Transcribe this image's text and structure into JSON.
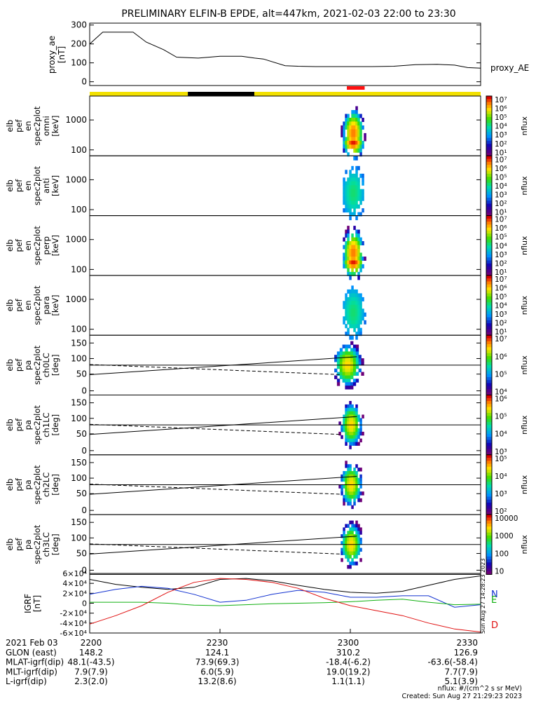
{
  "title": "PRELIMINARY ELFIN-B EPDE, alt=447km, 2021-02-03 22:00 to 23:30",
  "colors": {
    "sunlit": "#f2e000",
    "shadow": "#000000",
    "science_zone": "#ff1010",
    "bz": "#000000",
    "north": "#1030d0",
    "east": "#10b010",
    "down": "#e01010"
  },
  "chart_data": [
    {
      "type": "line",
      "id": "proxy_ae",
      "ylabel": [
        "proxy_ae",
        "[nT]"
      ],
      "ylim": [
        -20,
        310
      ],
      "yticks": [
        "300",
        "200",
        "100",
        "0"
      ],
      "legend": "proxy_AE",
      "x": [
        0,
        3,
        6,
        10,
        13,
        17,
        20,
        25,
        30,
        35,
        38,
        40,
        45,
        48,
        52,
        55,
        60,
        65,
        70,
        75,
        80,
        84,
        87,
        90
      ],
      "values": [
        200,
        262,
        262,
        262,
        210,
        170,
        130,
        125,
        135,
        135,
        125,
        120,
        85,
        82,
        80,
        80,
        80,
        80,
        82,
        90,
        92,
        88,
        75,
        72
      ]
    },
    {
      "type": "heatmap",
      "id": "omni",
      "ylabel": [
        "elb",
        "pef",
        "en",
        "spec2plot",
        "omni",
        "[keV]"
      ],
      "ytick_labels": [
        "1000",
        "100"
      ],
      "colorbar": {
        "label": "nflux",
        "ticks": [
          "10^7",
          "10^6",
          "10^5",
          "10^4",
          "10^3",
          "10^2",
          "10^1"
        ]
      }
    },
    {
      "type": "heatmap",
      "id": "anti",
      "ylabel": [
        "elb",
        "pef",
        "en",
        "spec2plot",
        "anti",
        "[keV]"
      ],
      "ytick_labels": [
        "1000",
        "100"
      ],
      "colorbar": {
        "label": "nflux",
        "ticks": [
          "10^7",
          "10^6",
          "10^5",
          "10^4",
          "10^3",
          "10^2",
          "10^1"
        ]
      }
    },
    {
      "type": "heatmap",
      "id": "perp",
      "ylabel": [
        "elb",
        "pef",
        "en",
        "spec2plot",
        "perp",
        "[keV]"
      ],
      "ytick_labels": [
        "1000",
        "100"
      ],
      "colorbar": {
        "label": "nflux",
        "ticks": [
          "10^7",
          "10^6",
          "10^5",
          "10^4",
          "10^3",
          "10^2",
          "10^1"
        ]
      }
    },
    {
      "type": "heatmap",
      "id": "para",
      "ylabel": [
        "elb",
        "pef",
        "en",
        "spec2plot",
        "para",
        "[keV]"
      ],
      "ytick_labels": [
        "1000",
        "100"
      ],
      "colorbar": {
        "label": "nflux",
        "ticks": [
          "10^7",
          "10^6",
          "10^5",
          "10^4",
          "10^3",
          "10^2",
          "10^1"
        ]
      }
    },
    {
      "type": "heatmap",
      "id": "ch0LC",
      "ylabel": [
        "elb",
        "pef",
        "pa",
        "spec2plot",
        "ch0LC",
        "[deg]"
      ],
      "ytick_labels": [
        "150",
        "100",
        "50",
        "0"
      ],
      "colorbar": {
        "label": "nflux",
        "ticks": [
          "10^7",
          "10^6",
          "10^5",
          "10^4"
        ]
      }
    },
    {
      "type": "heatmap",
      "id": "ch1LC",
      "ylabel": [
        "elb",
        "pef",
        "pa",
        "spec2plot",
        "ch1LC",
        "[deg]"
      ],
      "ytick_labels": [
        "150",
        "100",
        "50",
        "0"
      ],
      "colorbar": {
        "label": "nflux",
        "ticks": [
          "10^6",
          "10^5",
          "10^4",
          "10^3"
        ]
      }
    },
    {
      "type": "heatmap",
      "id": "ch2LC",
      "ylabel": [
        "elb",
        "pef",
        "pa",
        "spec2plot",
        "ch2LC",
        "[deg]"
      ],
      "ytick_labels": [
        "150",
        "100",
        "50",
        "0"
      ],
      "colorbar": {
        "label": "nflux",
        "ticks": [
          "10^5",
          "10^4",
          "10^3",
          "10^2"
        ]
      }
    },
    {
      "type": "heatmap",
      "id": "ch3LC",
      "ylabel": [
        "elb",
        "pef",
        "pa",
        "spec2plot",
        "ch3LC",
        "[deg]"
      ],
      "ytick_labels": [
        "150",
        "100",
        "50",
        "0"
      ],
      "colorbar": {
        "label": "nflux",
        "ticks": [
          "10000",
          "1000",
          "100",
          "10"
        ]
      }
    },
    {
      "type": "line",
      "id": "igrf",
      "ylabel": [
        "IGRF",
        "[nT]"
      ],
      "yticks": [
        "6×10^4",
        "4×10^4",
        "2×10^4",
        "0",
        "-2×10^4",
        "-4×10^4",
        "-6×10^4"
      ],
      "ylim": [
        -60000,
        60000
      ],
      "legend": [
        "N",
        "E",
        "D"
      ],
      "series": [
        {
          "values": [
            48000,
            38000,
            32000,
            28000,
            32000,
            48000,
            50000,
            45000,
            36000,
            28000,
            22000,
            20000,
            24000,
            36000,
            48000,
            55000
          ]
        },
        {
          "values": [
            18000,
            28000,
            34000,
            30000,
            18000,
            2000,
            6000,
            18000,
            26000,
            22000,
            12000,
            12000,
            15000,
            15000,
            -8000,
            -3000
          ]
        },
        {
          "values": [
            2000,
            2000,
            2000,
            0,
            -4000,
            -5000,
            -3000,
            -1000,
            0,
            1000,
            3000,
            6000,
            8000,
            2000,
            -3000,
            -2000
          ]
        },
        {
          "values": [
            -42000,
            -25000,
            -5000,
            22000,
            42000,
            50000,
            48000,
            42000,
            30000,
            10000,
            -5000,
            -15000,
            -25000,
            -40000,
            -52000,
            -58000
          ]
        }
      ]
    }
  ],
  "orbit_bar": {
    "label": "sunlit/shadow",
    "segments": [
      {
        "state": "sunlit",
        "from": 0,
        "to": 22.6
      },
      {
        "state": "shadow",
        "from": 22.6,
        "to": 37.9
      },
      {
        "state": "sunlit",
        "from": 37.9,
        "to": 90
      }
    ],
    "science_zone": {
      "from": 59.2,
      "to": 63.3
    }
  },
  "xaxis": {
    "range_minutes": [
      0,
      90
    ],
    "tick_minutes": [
      0,
      30,
      60,
      90
    ],
    "tick_labels": [
      "2200",
      "2230",
      "2300",
      "2330"
    ]
  },
  "footer_rows": [
    {
      "label": "2021 Feb 03",
      "values": [
        "2200",
        "2230",
        "2300",
        "2330"
      ]
    },
    {
      "label": "GLON (east)",
      "values": [
        "148.2",
        "124.1",
        "310.2",
        "126.9"
      ]
    },
    {
      "label": "MLAT-igrf(dip)",
      "values": [
        "48.1(-43.5)",
        "73.9(69.3)",
        "-18.4(-6.2)",
        "-63.6(-58.4)"
      ]
    },
    {
      "label": "MLT-igrf(dip)",
      "values": [
        "7.9(7.9)",
        "6.0(5.9)",
        "19.0(19.2)",
        "7.7(7.9)"
      ]
    },
    {
      "label": "L-igrf(dip)",
      "values": [
        "2.3(2.0)",
        "13.2(8.6)",
        "1.1(1.1)",
        "5.1(3.9)"
      ]
    }
  ],
  "note_units": "nflux: #/(cm^2 s sr MeV)",
  "note_created": "Created: Sun Aug 27 21:29:23 2023",
  "side_stamp": "Sun Aug 27 14:28:23 2023"
}
